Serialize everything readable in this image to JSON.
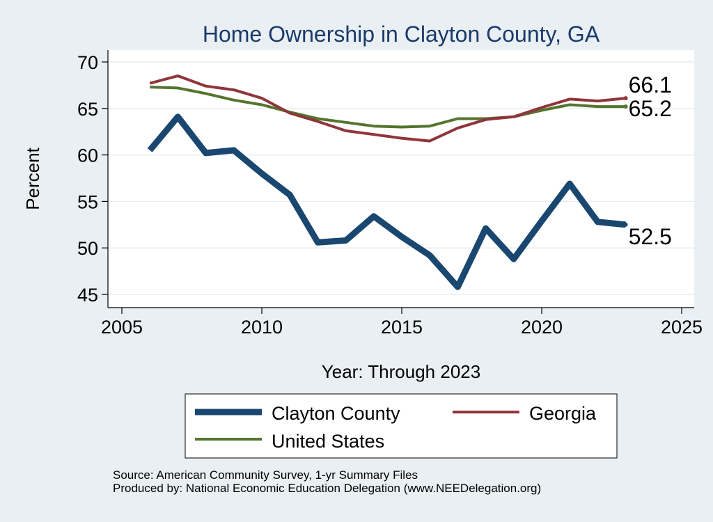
{
  "chart_data": {
    "type": "line",
    "title": "Home Ownership in Clayton County, GA",
    "xlabel": "Year: Through 2023",
    "ylabel": "Percent",
    "xlim": [
      2005,
      2025
    ],
    "ylim": [
      45,
      70
    ],
    "xticks": [
      2005,
      2010,
      2015,
      2020,
      2025
    ],
    "yticks": [
      45,
      50,
      55,
      60,
      65,
      70
    ],
    "grid": true,
    "legend_position": "bottom",
    "x": [
      2006,
      2007,
      2008,
      2009,
      2010,
      2011,
      2012,
      2013,
      2014,
      2015,
      2016,
      2017,
      2018,
      2019,
      2020,
      2021,
      2022,
      2023
    ],
    "series": [
      {
        "name": "Clayton County",
        "color": "#1a476f",
        "values": [
          60.5,
          64.1,
          60.2,
          60.5,
          58.0,
          55.7,
          50.6,
          50.8,
          53.4,
          51.2,
          49.2,
          45.8,
          52.1,
          48.8,
          52.9,
          56.9,
          52.8,
          52.5
        ],
        "end_label": "52.5"
      },
      {
        "name": "Georgia",
        "color": "#90353b",
        "values": [
          67.7,
          68.5,
          67.4,
          67.0,
          66.1,
          64.5,
          63.6,
          62.6,
          62.2,
          61.8,
          61.5,
          62.9,
          63.8,
          64.1,
          65.1,
          66.0,
          65.8,
          66.1
        ],
        "end_label": "66.1"
      },
      {
        "name": "United States",
        "color": "#55752f",
        "values": [
          67.3,
          67.2,
          66.6,
          65.9,
          65.4,
          64.6,
          63.9,
          63.5,
          63.1,
          63.0,
          63.1,
          63.9,
          63.9,
          64.1,
          64.8,
          65.4,
          65.2,
          65.2
        ],
        "end_label": "65.2"
      }
    ],
    "legend": {
      "items": [
        "Clayton County",
        "Georgia",
        "United States"
      ]
    }
  },
  "footer": {
    "source": "Source: American Community Survey, 1-yr Summary Files",
    "produced_by": "Produced by: National Economic Education Delegation (www.NEEDelegation.org)"
  }
}
